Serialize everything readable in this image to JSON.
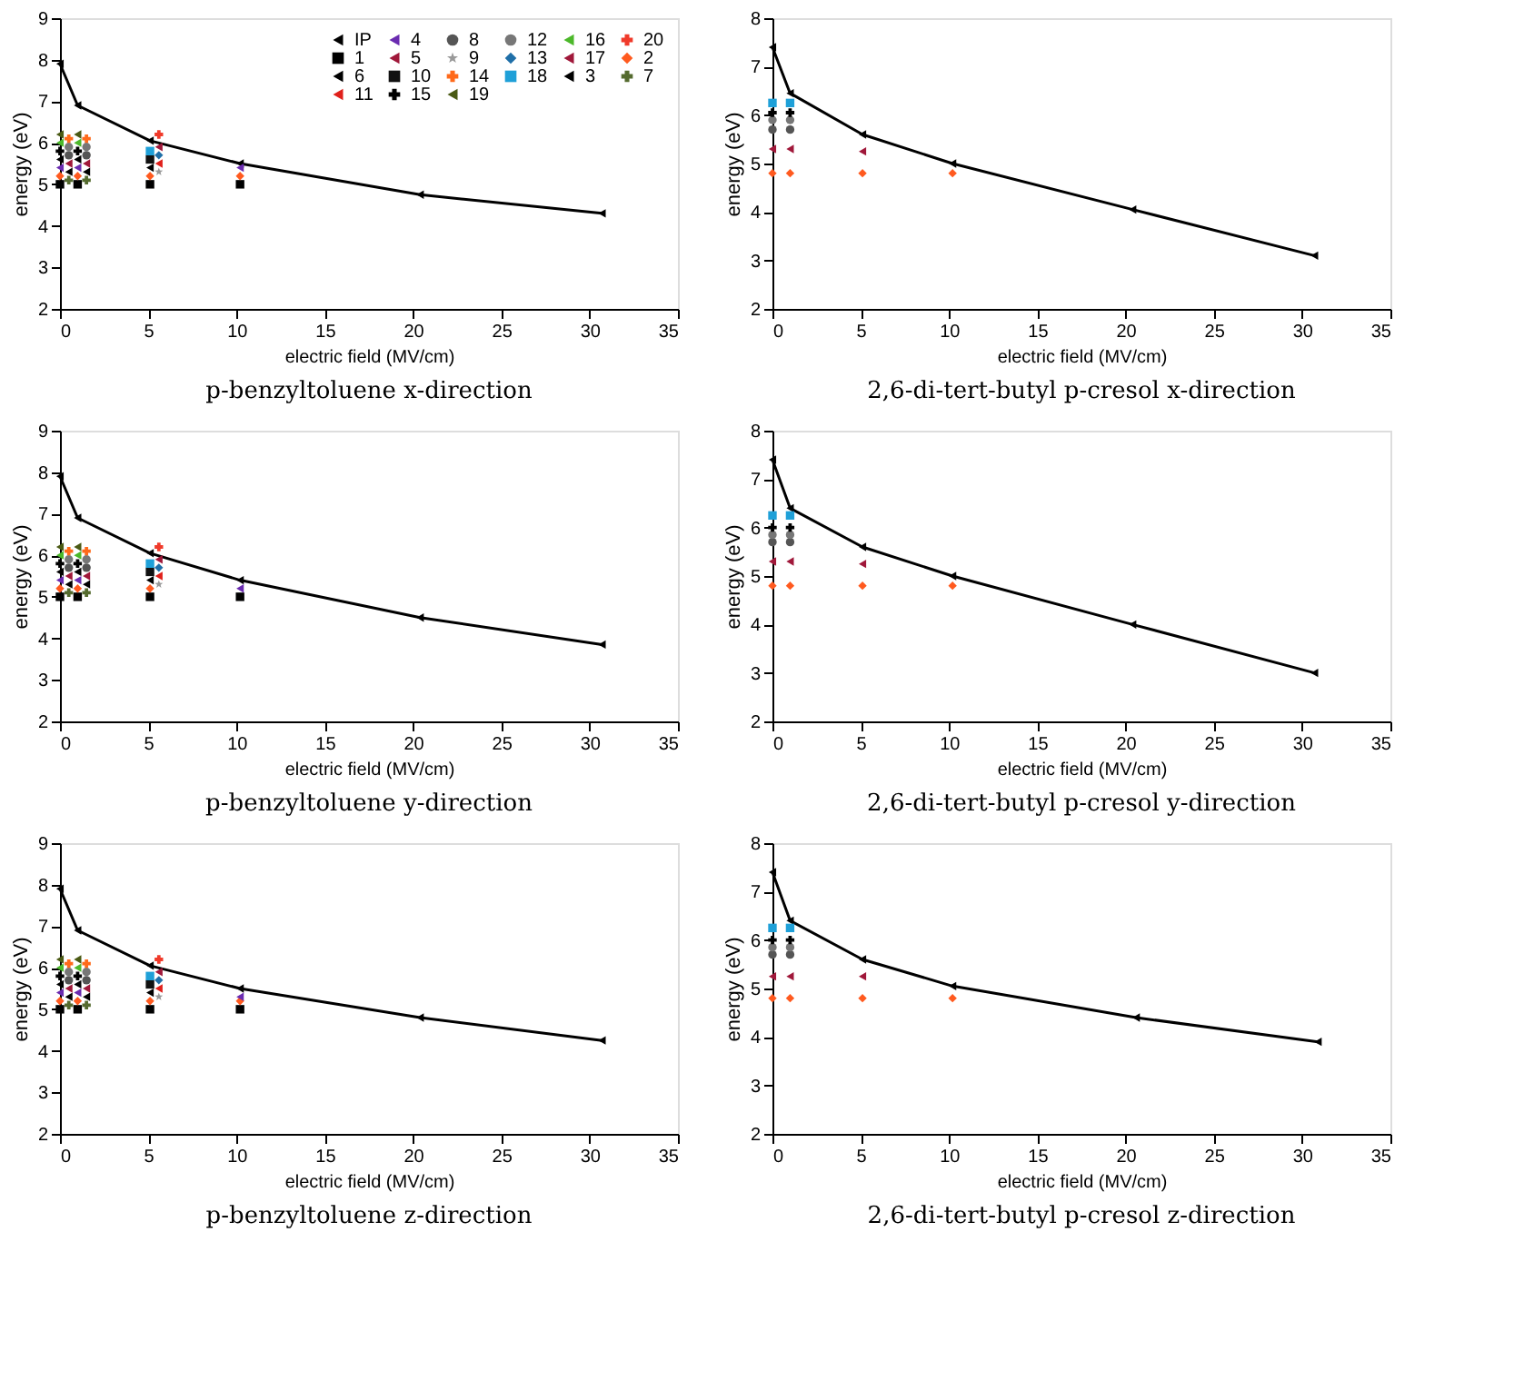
{
  "chart_data": [
    {
      "type": "scatter",
      "title": "p-benzyltoluene x-direction",
      "xlabel": "electric field (MV/cm)",
      "ylabel": "energy (eV)",
      "xlim": [
        0,
        35
      ],
      "xticks": [
        0,
        5,
        10,
        15,
        20,
        25,
        30,
        35
      ],
      "ylim": [
        2,
        9
      ],
      "yticks": [
        2,
        3,
        4,
        5,
        6,
        7,
        8,
        9
      ],
      "grid": false,
      "legend": "top right",
      "series": [
        {
          "name": "IP",
          "type": "line",
          "marker": "triangle",
          "color": "#000000",
          "x": [
            0,
            1,
            5.1,
            10.2,
            20.4,
            30.7
          ],
          "values": [
            7.9,
            6.9,
            6.05,
            5.5,
            4.75,
            4.3
          ]
        },
        {
          "name": "1",
          "marker": "square",
          "color": "#000000",
          "x": [
            0,
            1,
            5.1,
            10.2
          ],
          "values": [
            5.0,
            5.0,
            5.0,
            5.0
          ]
        },
        {
          "name": "2",
          "marker": "diamond",
          "color": "#ff5a1f",
          "x": [
            0,
            1,
            5.1,
            10.2
          ],
          "values": [
            5.2,
            5.2,
            5.2,
            5.2
          ]
        },
        {
          "name": "3",
          "marker": "triangle",
          "color": "#000000",
          "x": [
            0.5,
            1.5,
            5.1
          ],
          "values": [
            5.3,
            5.3,
            5.4
          ]
        },
        {
          "name": "4",
          "marker": "triangle",
          "color": "#6a2bb0",
          "x": [
            0,
            1,
            10.2
          ],
          "values": [
            5.4,
            5.4,
            5.4
          ]
        },
        {
          "name": "5",
          "marker": "triangle",
          "color": "#a0183a",
          "x": [
            0.5,
            1.5
          ],
          "values": [
            5.5,
            5.5
          ]
        },
        {
          "name": "6",
          "marker": "triangle",
          "color": "#000000",
          "x": [
            0,
            1
          ],
          "values": [
            5.6,
            5.6
          ]
        },
        {
          "name": "7",
          "marker": "cross",
          "color": "#556b2f",
          "x": [
            0.5,
            1.5
          ],
          "values": [
            5.1,
            5.1
          ]
        },
        {
          "name": "8",
          "marker": "circle",
          "color": "#555555",
          "x": [
            0.5,
            1.5
          ],
          "values": [
            5.7,
            5.7
          ]
        },
        {
          "name": "9",
          "marker": "star",
          "color": "#999999",
          "x": [
            5.6
          ],
          "values": [
            5.3
          ]
        },
        {
          "name": "10",
          "marker": "square",
          "color": "#111111",
          "x": [
            5.1
          ],
          "values": [
            5.6
          ]
        },
        {
          "name": "11",
          "marker": "triangle",
          "color": "#e0201b",
          "x": [
            5.6
          ],
          "values": [
            5.5
          ]
        },
        {
          "name": "12",
          "marker": "circle",
          "color": "#777777",
          "x": [
            0.5,
            1.5
          ],
          "values": [
            5.9,
            5.9
          ]
        },
        {
          "name": "13",
          "marker": "diamond",
          "color": "#1f6fa8",
          "x": [
            5.6
          ],
          "values": [
            5.7
          ]
        },
        {
          "name": "14",
          "marker": "cross",
          "color": "#ff6a1a",
          "x": [
            0.5,
            1.5
          ],
          "values": [
            6.1,
            6.1
          ]
        },
        {
          "name": "15",
          "marker": "cross",
          "color": "#000000",
          "x": [
            0,
            1
          ],
          "values": [
            5.8,
            5.8
          ]
        },
        {
          "name": "16",
          "marker": "triangle",
          "color": "#4cb82a",
          "x": [
            0,
            1
          ],
          "values": [
            6.0,
            6.0
          ]
        },
        {
          "name": "17",
          "marker": "triangle",
          "color": "#a0183a",
          "x": [
            5.6
          ],
          "values": [
            5.9
          ]
        },
        {
          "name": "18",
          "marker": "square",
          "color": "#1fa0d8",
          "x": [
            5.1
          ],
          "values": [
            5.8
          ]
        },
        {
          "name": "19",
          "marker": "triangle",
          "color": "#4a5a14",
          "x": [
            0,
            1
          ],
          "values": [
            6.2,
            6.2
          ]
        },
        {
          "name": "20",
          "marker": "cross",
          "color": "#f03a2a",
          "x": [
            5.6
          ],
          "values": [
            6.2
          ]
        }
      ]
    },
    {
      "type": "scatter",
      "title": "2,6-di-tert-butyl p-cresol x-direction",
      "xlabel": "electric field (MV/cm)",
      "ylabel": "energy (eV)",
      "xlim": [
        0,
        35
      ],
      "xticks": [
        0,
        5,
        10,
        15,
        20,
        25,
        30,
        35
      ],
      "ylim": [
        2,
        8
      ],
      "yticks": [
        2,
        3,
        4,
        5,
        6,
        7,
        8
      ],
      "grid": false,
      "series": [
        {
          "type": "line",
          "marker": "triangle",
          "color": "#000000",
          "x": [
            0,
            1,
            5.1,
            10.2,
            20.4,
            30.7
          ],
          "values": [
            7.4,
            6.45,
            5.6,
            5.0,
            4.05,
            3.1
          ]
        },
        {
          "marker": "diamond",
          "color": "#ff5a1f",
          "x": [
            0,
            1,
            5.1,
            10.2
          ],
          "values": [
            4.8,
            4.8,
            4.8,
            4.8
          ]
        },
        {
          "marker": "triangle",
          "color": "#a0183a",
          "x": [
            0,
            1,
            5.1
          ],
          "values": [
            5.3,
            5.3,
            5.25
          ]
        },
        {
          "marker": "circle",
          "color": "#555555",
          "x": [
            0,
            1
          ],
          "values": [
            5.7,
            5.7
          ]
        },
        {
          "marker": "circle",
          "color": "#777777",
          "x": [
            0,
            1
          ],
          "values": [
            5.9,
            5.9
          ]
        },
        {
          "marker": "cross",
          "color": "#000000",
          "x": [
            0,
            1
          ],
          "values": [
            6.05,
            6.05
          ]
        },
        {
          "marker": "square",
          "color": "#1fa0d8",
          "x": [
            0,
            1
          ],
          "values": [
            6.25,
            6.25
          ]
        }
      ]
    },
    {
      "type": "scatter",
      "title": "p-benzyltoluene y-direction",
      "xlabel": "electric field (MV/cm)",
      "ylabel": "energy (eV)",
      "xlim": [
        0,
        35
      ],
      "xticks": [
        0,
        5,
        10,
        15,
        20,
        25,
        30,
        35
      ],
      "ylim": [
        2,
        9
      ],
      "yticks": [
        2,
        3,
        4,
        5,
        6,
        7,
        8,
        9
      ],
      "grid": false,
      "series": [
        {
          "type": "line",
          "marker": "triangle",
          "color": "#000000",
          "x": [
            0,
            1,
            5.1,
            10.2,
            20.4,
            30.7
          ],
          "values": [
            7.9,
            6.9,
            6.05,
            5.4,
            4.5,
            3.85
          ]
        },
        {
          "marker": "square",
          "color": "#000000",
          "x": [
            0,
            1,
            5.1,
            10.2
          ],
          "values": [
            5.0,
            5.0,
            5.0,
            5.0
          ]
        },
        {
          "marker": "diamond",
          "color": "#ff5a1f",
          "x": [
            0,
            1,
            5.1
          ],
          "values": [
            5.2,
            5.2,
            5.2
          ]
        },
        {
          "marker": "triangle",
          "color": "#000000",
          "x": [
            0.5,
            1.5,
            5.1
          ],
          "values": [
            5.3,
            5.3,
            5.4
          ]
        },
        {
          "marker": "triangle",
          "color": "#6a2bb0",
          "x": [
            0,
            1,
            10.2
          ],
          "values": [
            5.4,
            5.4,
            5.2
          ]
        },
        {
          "marker": "triangle",
          "color": "#a0183a",
          "x": [
            0.5,
            1.5
          ],
          "values": [
            5.5,
            5.5
          ]
        },
        {
          "marker": "triangle",
          "color": "#000000",
          "x": [
            0,
            1
          ],
          "values": [
            5.6,
            5.6
          ]
        },
        {
          "marker": "cross",
          "color": "#556b2f",
          "x": [
            0.5,
            1.5
          ],
          "values": [
            5.1,
            5.1
          ]
        },
        {
          "marker": "circle",
          "color": "#555555",
          "x": [
            0.5,
            1.5
          ],
          "values": [
            5.7,
            5.7
          ]
        },
        {
          "marker": "star",
          "color": "#999999",
          "x": [
            5.6
          ],
          "values": [
            5.3
          ]
        },
        {
          "marker": "square",
          "color": "#111111",
          "x": [
            5.1
          ],
          "values": [
            5.6
          ]
        },
        {
          "marker": "triangle",
          "color": "#e0201b",
          "x": [
            5.6
          ],
          "values": [
            5.5
          ]
        },
        {
          "marker": "circle",
          "color": "#777777",
          "x": [
            0.5,
            1.5
          ],
          "values": [
            5.9,
            5.9
          ]
        },
        {
          "marker": "diamond",
          "color": "#1f6fa8",
          "x": [
            5.6
          ],
          "values": [
            5.7
          ]
        },
        {
          "marker": "cross",
          "color": "#ff6a1a",
          "x": [
            0.5,
            1.5
          ],
          "values": [
            6.1,
            6.1
          ]
        },
        {
          "marker": "cross",
          "color": "#000000",
          "x": [
            0,
            1
          ],
          "values": [
            5.8,
            5.8
          ]
        },
        {
          "marker": "triangle",
          "color": "#4cb82a",
          "x": [
            0,
            1
          ],
          "values": [
            6.0,
            6.0
          ]
        },
        {
          "marker": "triangle",
          "color": "#a0183a",
          "x": [
            5.6
          ],
          "values": [
            5.9
          ]
        },
        {
          "marker": "square",
          "color": "#1fa0d8",
          "x": [
            5.1
          ],
          "values": [
            5.8
          ]
        },
        {
          "marker": "triangle",
          "color": "#4a5a14",
          "x": [
            0,
            1
          ],
          "values": [
            6.2,
            6.2
          ]
        },
        {
          "marker": "cross",
          "color": "#f03a2a",
          "x": [
            5.6
          ],
          "values": [
            6.2
          ]
        }
      ]
    },
    {
      "type": "scatter",
      "title": "2,6-di-tert-butyl p-cresol y-direction",
      "xlabel": "electric field (MV/cm)",
      "ylabel": "energy (eV)",
      "xlim": [
        0,
        35
      ],
      "xticks": [
        0,
        5,
        10,
        15,
        20,
        25,
        30,
        35
      ],
      "ylim": [
        2,
        8
      ],
      "yticks": [
        2,
        3,
        4,
        5,
        6,
        7,
        8
      ],
      "grid": false,
      "series": [
        {
          "type": "line",
          "marker": "triangle",
          "color": "#000000",
          "x": [
            0,
            1,
            5.1,
            10.2,
            20.4,
            30.7
          ],
          "values": [
            7.4,
            6.4,
            5.6,
            5.0,
            4.0,
            3.0
          ]
        },
        {
          "marker": "diamond",
          "color": "#ff5a1f",
          "x": [
            0,
            1,
            5.1,
            10.2
          ],
          "values": [
            4.8,
            4.8,
            4.8,
            4.8
          ]
        },
        {
          "marker": "triangle",
          "color": "#a0183a",
          "x": [
            0,
            1,
            5.1
          ],
          "values": [
            5.3,
            5.3,
            5.25
          ]
        },
        {
          "marker": "circle",
          "color": "#555555",
          "x": [
            0,
            1
          ],
          "values": [
            5.7,
            5.7
          ]
        },
        {
          "marker": "circle",
          "color": "#777777",
          "x": [
            0,
            1
          ],
          "values": [
            5.85,
            5.85
          ]
        },
        {
          "marker": "cross",
          "color": "#000000",
          "x": [
            0,
            1
          ],
          "values": [
            6.0,
            6.0
          ]
        },
        {
          "marker": "square",
          "color": "#1fa0d8",
          "x": [
            0,
            1
          ],
          "values": [
            6.25,
            6.25
          ]
        }
      ]
    },
    {
      "type": "scatter",
      "title": "p-benzyltoluene z-direction",
      "xlabel": "electric field (MV/cm)",
      "ylabel": "energy (eV)",
      "xlim": [
        0,
        35
      ],
      "xticks": [
        0,
        5,
        10,
        15,
        20,
        25,
        30,
        35
      ],
      "ylim": [
        2,
        9
      ],
      "yticks": [
        2,
        3,
        4,
        5,
        6,
        7,
        8,
        9
      ],
      "grid": false,
      "series": [
        {
          "type": "line",
          "marker": "triangle",
          "color": "#000000",
          "x": [
            0,
            1,
            5.1,
            10.2,
            20.4,
            30.7
          ],
          "values": [
            7.9,
            6.9,
            6.05,
            5.5,
            4.8,
            4.25
          ]
        },
        {
          "marker": "square",
          "color": "#000000",
          "x": [
            0,
            1,
            5.1,
            10.2
          ],
          "values": [
            5.0,
            5.0,
            5.0,
            5.0
          ]
        },
        {
          "marker": "diamond",
          "color": "#ff5a1f",
          "x": [
            0,
            1,
            5.1,
            10.2
          ],
          "values": [
            5.2,
            5.2,
            5.2,
            5.2
          ]
        },
        {
          "marker": "triangle",
          "color": "#000000",
          "x": [
            0.5,
            1.5,
            5.1
          ],
          "values": [
            5.3,
            5.3,
            5.4
          ]
        },
        {
          "marker": "triangle",
          "color": "#6a2bb0",
          "x": [
            0,
            1,
            10.2
          ],
          "values": [
            5.4,
            5.4,
            5.3
          ]
        },
        {
          "marker": "triangle",
          "color": "#a0183a",
          "x": [
            0.5,
            1.5
          ],
          "values": [
            5.5,
            5.5
          ]
        },
        {
          "marker": "triangle",
          "color": "#000000",
          "x": [
            0,
            1
          ],
          "values": [
            5.6,
            5.6
          ]
        },
        {
          "marker": "cross",
          "color": "#556b2f",
          "x": [
            0.5,
            1.5
          ],
          "values": [
            5.1,
            5.1
          ]
        },
        {
          "marker": "circle",
          "color": "#555555",
          "x": [
            0.5,
            1.5
          ],
          "values": [
            5.7,
            5.7
          ]
        },
        {
          "marker": "star",
          "color": "#999999",
          "x": [
            5.6
          ],
          "values": [
            5.3
          ]
        },
        {
          "marker": "square",
          "color": "#111111",
          "x": [
            5.1
          ],
          "values": [
            5.6
          ]
        },
        {
          "marker": "triangle",
          "color": "#e0201b",
          "x": [
            5.6
          ],
          "values": [
            5.5
          ]
        },
        {
          "marker": "circle",
          "color": "#777777",
          "x": [
            0.5,
            1.5
          ],
          "values": [
            5.9,
            5.9
          ]
        },
        {
          "marker": "diamond",
          "color": "#1f6fa8",
          "x": [
            5.6
          ],
          "values": [
            5.7
          ]
        },
        {
          "marker": "cross",
          "color": "#ff6a1a",
          "x": [
            0.5,
            1.5
          ],
          "values": [
            6.1,
            6.1
          ]
        },
        {
          "marker": "cross",
          "color": "#000000",
          "x": [
            0,
            1
          ],
          "values": [
            5.8,
            5.8
          ]
        },
        {
          "marker": "triangle",
          "color": "#4cb82a",
          "x": [
            0,
            1
          ],
          "values": [
            6.0,
            6.0
          ]
        },
        {
          "marker": "triangle",
          "color": "#a0183a",
          "x": [
            5.6
          ],
          "values": [
            5.9
          ]
        },
        {
          "marker": "square",
          "color": "#1fa0d8",
          "x": [
            5.1
          ],
          "values": [
            5.8
          ]
        },
        {
          "marker": "triangle",
          "color": "#4a5a14",
          "x": [
            0,
            1
          ],
          "values": [
            6.2,
            6.2
          ]
        },
        {
          "marker": "cross",
          "color": "#f03a2a",
          "x": [
            5.6
          ],
          "values": [
            6.2
          ]
        }
      ]
    },
    {
      "type": "scatter",
      "title": "2,6-di-tert-butyl p-cresol z-direction",
      "xlabel": "electric field (MV/cm)",
      "ylabel": "energy (eV)",
      "xlim": [
        0,
        35
      ],
      "xticks": [
        0,
        5,
        10,
        15,
        20,
        25,
        30,
        35
      ],
      "ylim": [
        2,
        8
      ],
      "yticks": [
        2,
        3,
        4,
        5,
        6,
        7,
        8
      ],
      "grid": false,
      "series": [
        {
          "type": "line",
          "marker": "triangle",
          "color": "#000000",
          "x": [
            0,
            1,
            5.1,
            10.2,
            20.6,
            30.9
          ],
          "values": [
            7.4,
            6.4,
            5.6,
            5.05,
            4.4,
            3.9
          ]
        },
        {
          "marker": "diamond",
          "color": "#ff5a1f",
          "x": [
            0,
            1,
            5.1,
            10.2
          ],
          "values": [
            4.8,
            4.8,
            4.8,
            4.8
          ]
        },
        {
          "marker": "triangle",
          "color": "#a0183a",
          "x": [
            0,
            1,
            5.1
          ],
          "values": [
            5.25,
            5.25,
            5.25
          ]
        },
        {
          "marker": "circle",
          "color": "#555555",
          "x": [
            0,
            1
          ],
          "values": [
            5.7,
            5.7
          ]
        },
        {
          "marker": "circle",
          "color": "#777777",
          "x": [
            0,
            1
          ],
          "values": [
            5.85,
            5.85
          ]
        },
        {
          "marker": "cross",
          "color": "#000000",
          "x": [
            0,
            1
          ],
          "values": [
            6.0,
            6.0
          ]
        },
        {
          "marker": "square",
          "color": "#1fa0d8",
          "x": [
            0,
            1
          ],
          "values": [
            6.25,
            6.25
          ]
        }
      ]
    }
  ]
}
